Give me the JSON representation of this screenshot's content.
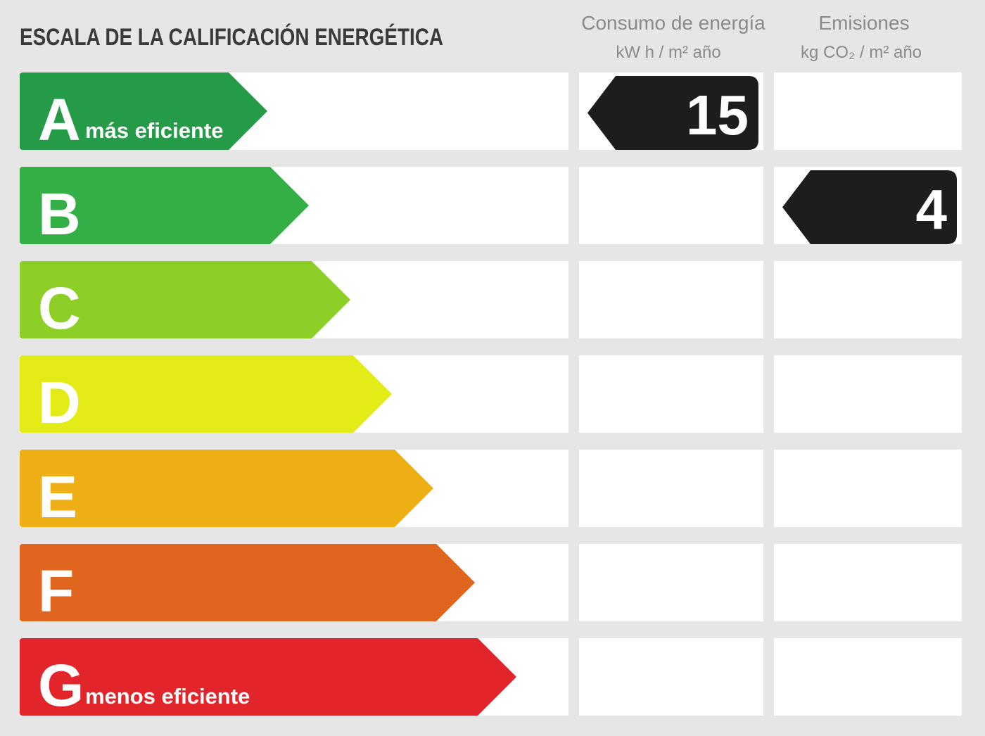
{
  "title": "ESCALA DE LA CALIFICACIÓN ENERGÉTICA",
  "columns": [
    {
      "title": "Consumo de energía",
      "unit": "kW h / m² año"
    },
    {
      "title": "Emisiones",
      "unit": "kg CO₂ / m² año"
    }
  ],
  "ratings": [
    {
      "letter": "A",
      "label": "más eficiente",
      "color": "#259b48"
    },
    {
      "letter": "B",
      "color": "#33af45"
    },
    {
      "letter": "C",
      "color": "#8dcf27"
    },
    {
      "letter": "D",
      "color": "#e3ec17"
    },
    {
      "letter": "E",
      "color": "#eeae15"
    },
    {
      "letter": "F",
      "color": "#e0651e"
    },
    {
      "letter": "G",
      "label": "menos eficiente",
      "color": "#e2252a"
    }
  ],
  "results": [
    {
      "rating": "A",
      "value": 15
    },
    {
      "rating": "B",
      "value": 4
    }
  ]
}
